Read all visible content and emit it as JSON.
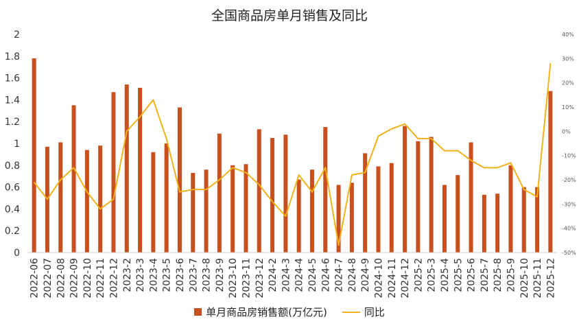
{
  "chart_data": {
    "type": "bar+line",
    "title": "全国商品房单月销售及同比",
    "categories": [
      "2022-06",
      "2022-07",
      "2022-08",
      "2022-09",
      "2022-10",
      "2022-11",
      "2022-12",
      "2023-2",
      "2023-3",
      "2023-4",
      "2023-5",
      "2023-6",
      "2023-7",
      "2023-8",
      "2023-9",
      "2023-10",
      "2023-11",
      "2023-12",
      "2024-2",
      "2024-3",
      "2024-4",
      "2024-5",
      "2024-6",
      "2024-7",
      "2024-8",
      "2024-9",
      "2024-10",
      "2024-11",
      "2024-12",
      "2025-2",
      "2025-3",
      "2025-4",
      "2025-5",
      "2025-6",
      "2025-7",
      "2025-8",
      "2025-9",
      "2025-10",
      "2025-11",
      "2025-12"
    ],
    "series": [
      {
        "name": "单月商品房销售额(万亿元)",
        "type": "bar",
        "axis": "left",
        "color": "#C7501E",
        "values": [
          1.78,
          0.97,
          1.01,
          1.35,
          0.94,
          0.98,
          1.47,
          1.54,
          1.51,
          0.92,
          1.0,
          1.33,
          0.73,
          0.76,
          1.09,
          0.8,
          0.81,
          1.13,
          1.05,
          1.08,
          0.67,
          0.76,
          1.15,
          0.62,
          0.64,
          0.91,
          0.79,
          0.82,
          1.16,
          1.02,
          1.06,
          0.62,
          0.71,
          1.01,
          0.53,
          0.54,
          0.8,
          0.6,
          0.6,
          1.48
        ]
      },
      {
        "name": "同比",
        "type": "line",
        "axis": "right",
        "color": "#F2B118",
        "values": [
          -21,
          -28,
          -20,
          -15,
          -25,
          -32,
          -28,
          0,
          6,
          13,
          -3,
          -25,
          -24,
          -24,
          -20,
          -15,
          -17,
          -22,
          -29,
          -35,
          -18,
          -25,
          -15,
          -47,
          -18,
          -17,
          -2,
          1,
          3,
          -3,
          -3,
          -8,
          -8,
          -12,
          -15,
          -15,
          -13,
          -24,
          -27,
          28
        ]
      }
    ],
    "left_axis": {
      "ylim": [
        0,
        2
      ],
      "ticks": [
        "0",
        "0.2",
        "0.4",
        "0.6",
        "0.8",
        "1",
        "1.2",
        "1.4",
        "1.6",
        "1.8",
        "2"
      ]
    },
    "right_axis": {
      "ylim": [
        -50,
        40
      ],
      "ticks": [
        "-50%",
        "-40%",
        "-30%",
        "-20%",
        "-10%",
        "0%",
        "10%",
        "20%",
        "30%",
        "40%"
      ]
    },
    "grid": false,
    "legend": {
      "position": "bottom",
      "bar_label": "单月商品房销售额(万亿元)",
      "line_label": "同比"
    }
  }
}
